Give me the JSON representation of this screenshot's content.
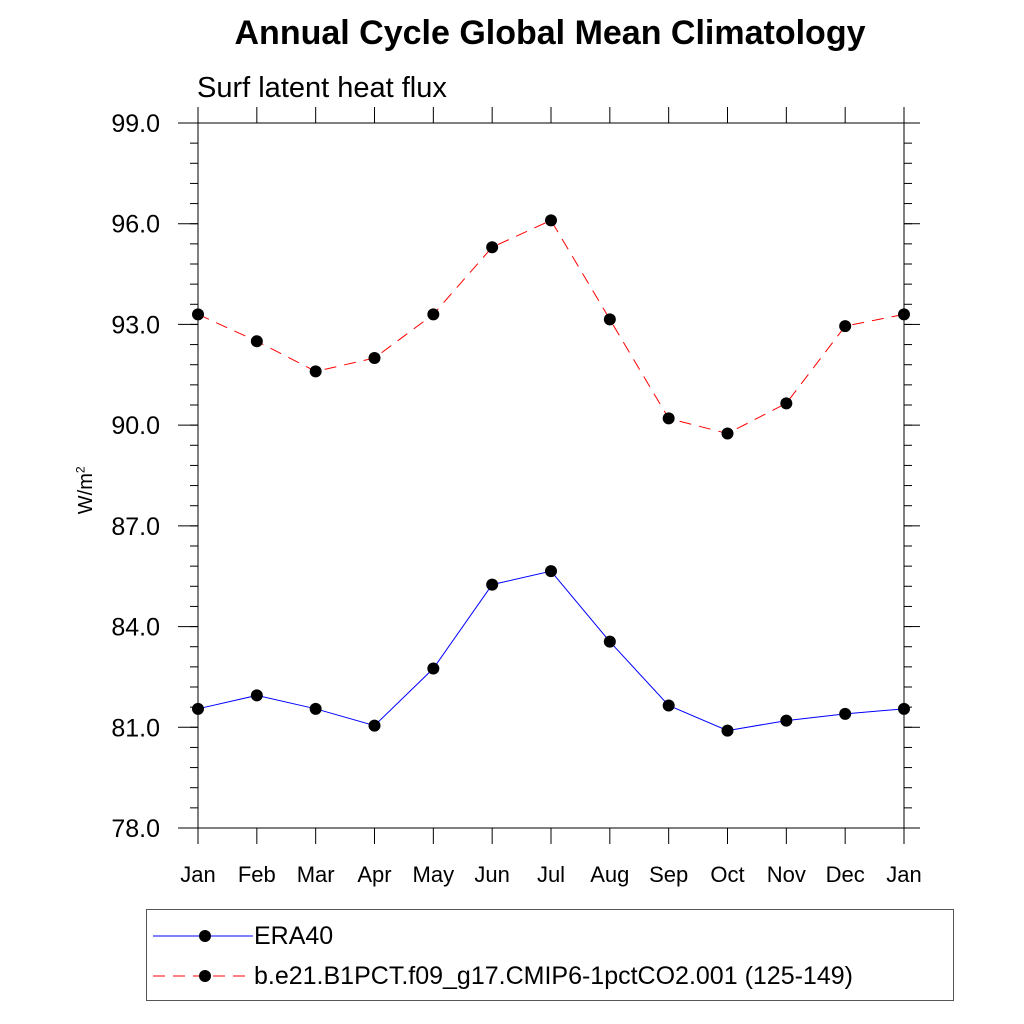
{
  "chart_data": {
    "type": "line",
    "title": "Annual Cycle Global Mean Climatology",
    "subtitle": "Surf latent heat flux",
    "xlabel": "",
    "ylabel": "W/m",
    "ylabel_superscript": "2",
    "categories": [
      "Jan",
      "Feb",
      "Mar",
      "Apr",
      "May",
      "Jun",
      "Jul",
      "Aug",
      "Sep",
      "Oct",
      "Nov",
      "Dec",
      "Jan"
    ],
    "ylim": [
      78.0,
      99.0
    ],
    "yticks": [
      "78.0",
      "81.0",
      "84.0",
      "87.0",
      "90.0",
      "93.0",
      "96.0",
      "99.0"
    ],
    "series": [
      {
        "name": "ERA40",
        "color": "#0000ff",
        "line_style": "solid",
        "values": [
          81.55,
          81.95,
          81.55,
          81.05,
          82.75,
          85.25,
          85.65,
          83.55,
          81.65,
          80.9,
          81.2,
          81.4,
          81.55
        ]
      },
      {
        "name": "b.e21.B1PCT.f09_g17.CMIP6-1pctCO2.001 (125-149)",
        "color": "#ff0000",
        "line_style": "dashed",
        "values": [
          93.3,
          92.5,
          91.6,
          92.0,
          93.3,
          95.3,
          96.1,
          93.15,
          90.2,
          89.75,
          90.65,
          92.95,
          93.3
        ]
      }
    ],
    "legend_position": "bottom"
  }
}
